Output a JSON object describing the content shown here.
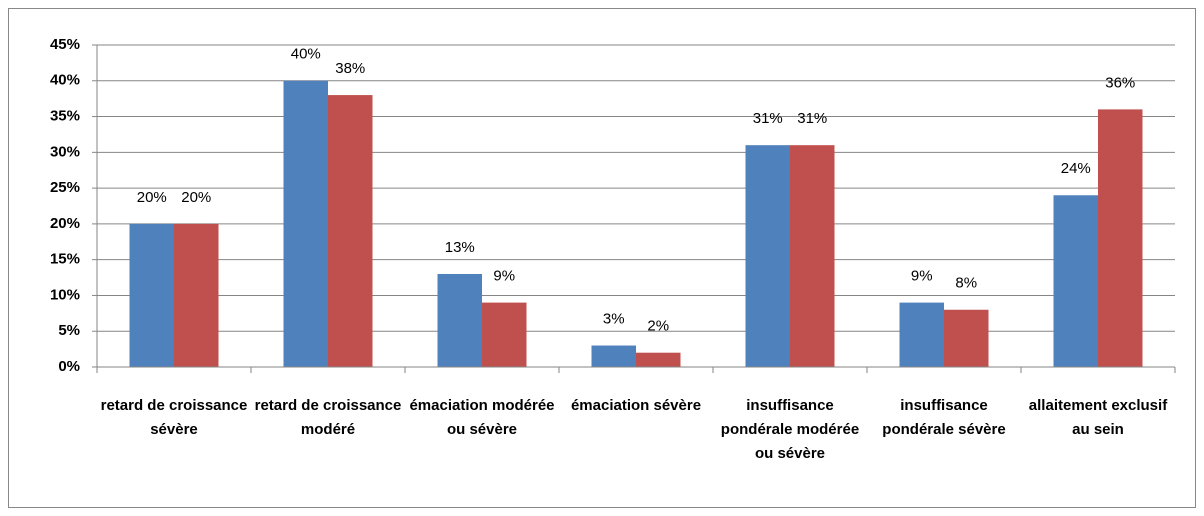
{
  "chart_data": {
    "type": "bar",
    "categories": [
      "retard de croissance sévère",
      "retard de croissance modéré",
      "émaciation modérée ou sévère",
      "émaciation sévère",
      "insuffisance pondérale modérée ou sévère",
      "insuffisance pondérale sévère",
      "allaitement exclusif au sein"
    ],
    "series": [
      {
        "color": "#4f81bd",
        "values": [
          20,
          40,
          13,
          3,
          31,
          9,
          24
        ],
        "value_labels": [
          "20%",
          "40%",
          "13%",
          "3%",
          "31%",
          "9%",
          "24%"
        ]
      },
      {
        "color": "#c0504d",
        "values": [
          20,
          38,
          9,
          2,
          31,
          8,
          36
        ],
        "value_labels": [
          "20%",
          "38%",
          "9%",
          "2%",
          "31%",
          "8%",
          "36%"
        ]
      }
    ],
    "ylim": [
      0,
      45
    ],
    "yticks": [
      {
        "value": 0,
        "label": "0%"
      },
      {
        "value": 5,
        "label": "5%"
      },
      {
        "value": 10,
        "label": "10%"
      },
      {
        "value": 15,
        "label": "15%"
      },
      {
        "value": 20,
        "label": "20%"
      },
      {
        "value": 25,
        "label": "25%"
      },
      {
        "value": 30,
        "label": "30%"
      },
      {
        "value": 35,
        "label": "35%"
      },
      {
        "value": 40,
        "label": "40%"
      },
      {
        "value": 45,
        "label": "45%"
      }
    ],
    "grid": true
  }
}
